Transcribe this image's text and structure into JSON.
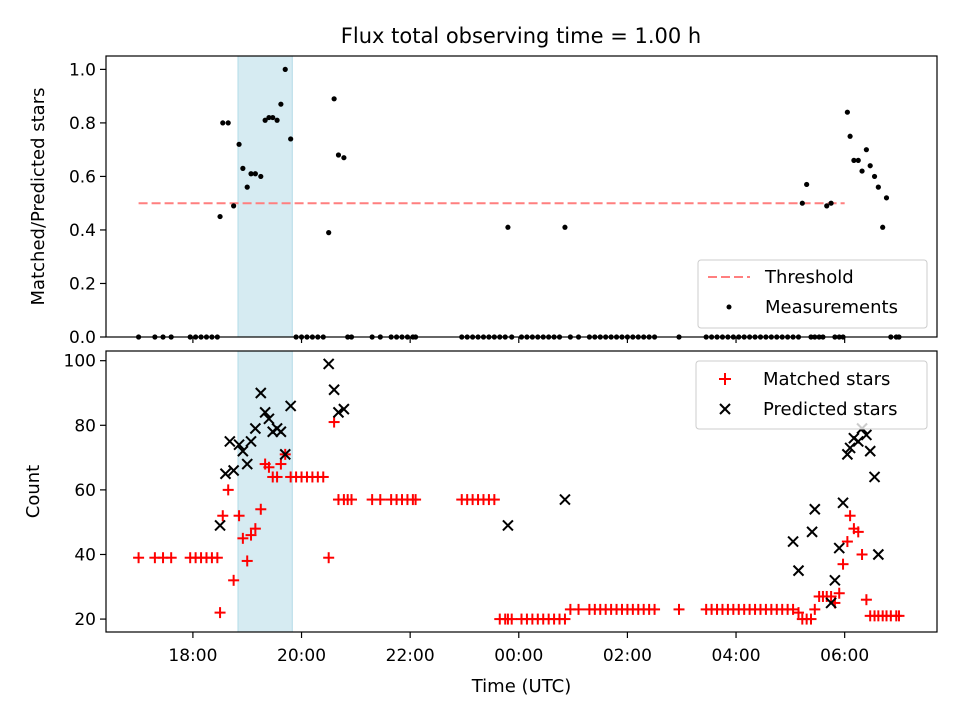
{
  "title": "Flux total observing time = 1.00 h",
  "colors": {
    "threshold": "#ff7f7f",
    "measurements": "#000000",
    "matched": "#ff0000",
    "predicted": "#000000",
    "band": "#add8e6"
  },
  "chart_data": [
    {
      "type": "scatter",
      "panel": "top",
      "ylabel": "Matched/Predicted stars",
      "xlabel": "",
      "xlim": [
        16.4,
        31.7
      ],
      "ylim": [
        0.0,
        1.05
      ],
      "yticks": [
        0.0,
        0.2,
        0.4,
        0.6,
        0.8,
        1.0
      ],
      "ytick_labels": [
        "0.0",
        "0.2",
        "0.4",
        "0.6",
        "0.8",
        "1.0"
      ],
      "xticks": [
        18,
        20,
        22,
        24,
        26,
        28,
        30
      ],
      "highlight_band": [
        18.83,
        19.83
      ],
      "threshold": {
        "name": "Threshold",
        "value": 0.5,
        "x": [
          17.0,
          30.0
        ]
      },
      "legend": {
        "position": "lower right",
        "entries": [
          "Threshold",
          "Measurements"
        ]
      },
      "series": [
        {
          "name": "Measurements",
          "x": [
            17.0,
            17.3,
            17.45,
            17.6,
            17.95,
            18.05,
            18.15,
            18.25,
            18.35,
            18.45,
            18.5,
            18.55,
            18.65,
            18.75,
            18.85,
            18.92,
            19.0,
            19.07,
            19.15,
            19.25,
            19.33,
            19.4,
            19.47,
            19.55,
            19.62,
            19.7,
            19.8,
            19.9,
            20.0,
            20.1,
            20.2,
            20.3,
            20.4,
            20.5,
            20.6,
            20.68,
            20.78,
            20.85,
            20.92,
            21.3,
            21.45,
            21.65,
            21.75,
            21.85,
            21.95,
            22.05,
            22.1,
            22.95,
            23.05,
            23.15,
            23.25,
            23.35,
            23.45,
            23.55,
            23.65,
            23.75,
            23.8,
            23.87,
            24.05,
            24.15,
            24.25,
            24.35,
            24.45,
            24.55,
            24.65,
            24.75,
            24.85,
            24.95,
            25.1,
            25.3,
            25.4,
            25.5,
            25.6,
            25.7,
            25.8,
            25.9,
            26.0,
            26.1,
            26.2,
            26.3,
            26.4,
            26.5,
            26.95,
            27.45,
            27.55,
            27.65,
            27.75,
            27.85,
            27.95,
            28.05,
            28.15,
            28.25,
            28.35,
            28.45,
            28.55,
            28.65,
            28.75,
            28.85,
            28.95,
            29.05,
            29.15,
            29.22,
            29.3,
            29.38,
            29.45,
            29.53,
            29.6,
            29.67,
            29.75,
            29.82,
            29.9,
            29.97,
            30.05,
            30.1,
            30.17,
            30.25,
            30.32,
            30.4,
            30.47,
            30.55,
            30.62,
            30.7,
            30.77,
            30.85,
            30.95,
            31.0
          ],
          "y": [
            0.0,
            0.0,
            0.0,
            0.0,
            0.0,
            0.0,
            0.0,
            0.0,
            0.0,
            0.0,
            0.45,
            0.8,
            0.8,
            0.49,
            0.72,
            0.63,
            0.56,
            0.61,
            0.61,
            0.6,
            0.81,
            0.82,
            0.82,
            0.81,
            0.87,
            1.0,
            0.74,
            0.0,
            0.0,
            0.0,
            0.0,
            0.0,
            0.0,
            0.39,
            0.89,
            0.68,
            0.67,
            0.0,
            0.0,
            0.0,
            0.0,
            0.0,
            0.0,
            0.0,
            0.0,
            0.0,
            0.0,
            0.0,
            0.0,
            0.0,
            0.0,
            0.0,
            0.0,
            0.0,
            0.0,
            0.0,
            0.41,
            0.0,
            0.0,
            0.0,
            0.0,
            0.0,
            0.0,
            0.0,
            0.0,
            0.0,
            0.41,
            0.0,
            0.0,
            0.0,
            0.0,
            0.0,
            0.0,
            0.0,
            0.0,
            0.0,
            0.0,
            0.0,
            0.0,
            0.0,
            0.0,
            0.0,
            0.0,
            0.0,
            0.0,
            0.0,
            0.0,
            0.0,
            0.0,
            0.0,
            0.0,
            0.0,
            0.0,
            0.0,
            0.0,
            0.0,
            0.0,
            0.0,
            0.0,
            0.0,
            0.0,
            0.5,
            0.57,
            0.0,
            0.0,
            0.0,
            0.0,
            0.49,
            0.5,
            0.0,
            0.0,
            0.0,
            0.84,
            0.75,
            0.66,
            0.66,
            0.62,
            0.7,
            0.64,
            0.6,
            0.56,
            0.41,
            0.52,
            0.0,
            0.0,
            0.0
          ]
        }
      ]
    },
    {
      "type": "scatter",
      "panel": "bottom",
      "xlabel": "Time (UTC)",
      "ylabel": "Count",
      "xlim": [
        16.4,
        31.7
      ],
      "ylim": [
        16,
        103
      ],
      "yticks": [
        20,
        40,
        60,
        80,
        100
      ],
      "ytick_labels": [
        "20",
        "40",
        "60",
        "80",
        "100"
      ],
      "xticks": [
        18,
        20,
        22,
        24,
        26,
        28,
        30
      ],
      "xtick_labels": [
        "18:00",
        "20:00",
        "22:00",
        "00:00",
        "02:00",
        "04:00",
        "06:00"
      ],
      "highlight_band": [
        18.83,
        19.83
      ],
      "legend": {
        "position": "upper right",
        "entries": [
          "Matched stars",
          "Predicted stars"
        ]
      },
      "series": [
        {
          "name": "Matched stars",
          "marker": "plus",
          "x": [
            17.0,
            17.3,
            17.45,
            17.6,
            17.95,
            18.05,
            18.15,
            18.25,
            18.35,
            18.45,
            18.5,
            18.55,
            18.65,
            18.75,
            18.85,
            18.92,
            19.0,
            19.07,
            19.15,
            19.25,
            19.33,
            19.4,
            19.47,
            19.55,
            19.62,
            19.7,
            19.8,
            19.9,
            20.0,
            20.1,
            20.2,
            20.3,
            20.4,
            20.5,
            20.6,
            20.68,
            20.78,
            20.85,
            20.92,
            21.3,
            21.45,
            21.65,
            21.75,
            21.85,
            21.95,
            22.05,
            22.1,
            22.95,
            23.05,
            23.15,
            23.25,
            23.35,
            23.45,
            23.55,
            23.65,
            23.75,
            23.8,
            23.87,
            24.05,
            24.15,
            24.25,
            24.35,
            24.45,
            24.55,
            24.65,
            24.75,
            24.85,
            24.95,
            25.1,
            25.3,
            25.4,
            25.5,
            25.6,
            25.7,
            25.8,
            25.9,
            26.0,
            26.1,
            26.2,
            26.3,
            26.4,
            26.5,
            26.95,
            27.45,
            27.55,
            27.65,
            27.75,
            27.85,
            27.95,
            28.05,
            28.15,
            28.25,
            28.35,
            28.45,
            28.55,
            28.65,
            28.75,
            28.85,
            28.95,
            29.05,
            29.15,
            29.22,
            29.3,
            29.38,
            29.45,
            29.53,
            29.6,
            29.67,
            29.75,
            29.82,
            29.9,
            29.97,
            30.05,
            30.1,
            30.17,
            30.25,
            30.32,
            30.4,
            30.47,
            30.55,
            30.62,
            30.7,
            30.77,
            30.85,
            30.95,
            31.0
          ],
          "y": [
            39,
            39,
            39,
            39,
            39,
            39,
            39,
            39,
            39,
            39,
            22,
            52,
            60,
            32,
            52,
            45,
            38,
            46,
            48,
            54,
            68,
            67,
            64,
            64,
            68,
            71,
            64,
            64,
            64,
            64,
            64,
            64,
            64,
            39,
            81,
            57,
            57,
            57,
            57,
            57,
            57,
            57,
            57,
            57,
            57,
            57,
            57,
            57,
            57,
            57,
            57,
            57,
            57,
            57,
            20,
            20,
            20,
            20,
            20,
            20,
            20,
            20,
            20,
            20,
            20,
            20,
            20,
            23,
            23,
            23,
            23,
            23,
            23,
            23,
            23,
            23,
            23,
            23,
            23,
            23,
            23,
            23,
            23,
            23,
            23,
            23,
            23,
            23,
            23,
            23,
            23,
            23,
            23,
            23,
            23,
            23,
            23,
            23,
            23,
            23,
            22,
            20,
            20,
            20,
            23,
            27,
            27,
            27,
            27,
            25,
            28,
            37,
            44,
            52,
            48,
            47,
            40,
            26,
            21,
            21,
            21,
            21,
            21,
            21,
            21,
            21
          ],
          "note_x_spacing": "approximate time of each exposure"
        },
        {
          "name": "Predicted stars",
          "marker": "x",
          "x": [
            18.5,
            18.6,
            18.68,
            18.75,
            18.85,
            18.92,
            19.0,
            19.07,
            19.15,
            19.25,
            19.33,
            19.4,
            19.47,
            19.55,
            19.62,
            19.7,
            19.8,
            20.5,
            20.6,
            20.68,
            20.78,
            23.8,
            24.85,
            29.05,
            29.15,
            29.4,
            29.45,
            29.75,
            29.82,
            29.9,
            29.97,
            30.05,
            30.1,
            30.17,
            30.25,
            30.32,
            30.4,
            30.47,
            30.55,
            30.62
          ],
          "y": [
            49,
            65,
            75,
            66,
            74,
            72,
            68,
            75,
            79,
            90,
            84,
            82,
            78,
            79,
            78,
            71,
            86,
            99,
            91,
            84,
            85,
            49,
            57,
            44,
            35,
            47,
            54,
            25,
            32,
            42,
            56,
            71,
            73,
            76,
            75,
            79,
            77,
            72,
            64,
            40
          ]
        }
      ]
    }
  ]
}
